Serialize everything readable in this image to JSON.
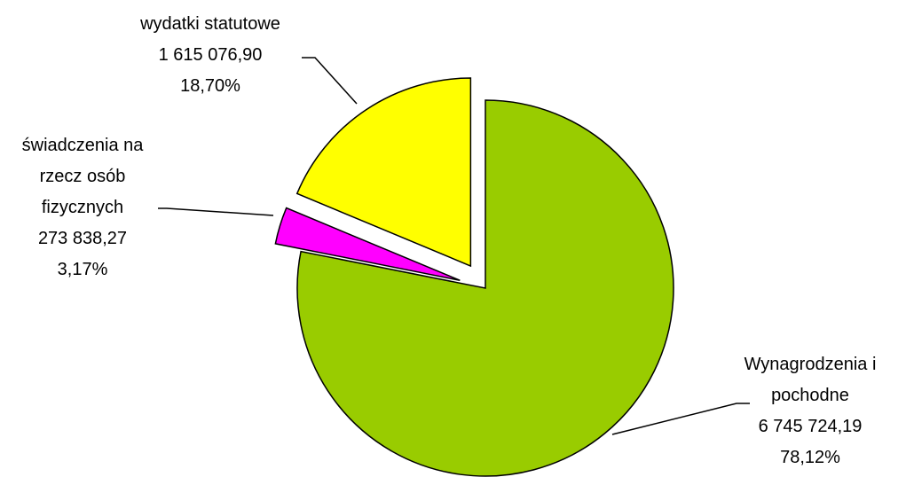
{
  "chart_data": {
    "type": "pie",
    "categories": [
      "Wynagrodzenia i pochodne",
      "świadczenia na rzecz osób fizycznych",
      "wydatki statutowe"
    ],
    "values": [
      78.12,
      3.17,
      18.7
    ],
    "value_labels": [
      "78,12%",
      "3,17%",
      "18,70%"
    ],
    "amounts": [
      6745724.19,
      273838.27,
      1615076.9
    ],
    "amount_labels": [
      "6 745 724,19",
      "273 838,27",
      "1 615 076,90"
    ],
    "colors": [
      "#99cc00",
      "#ff00ff",
      "#ffff00"
    ]
  }
}
